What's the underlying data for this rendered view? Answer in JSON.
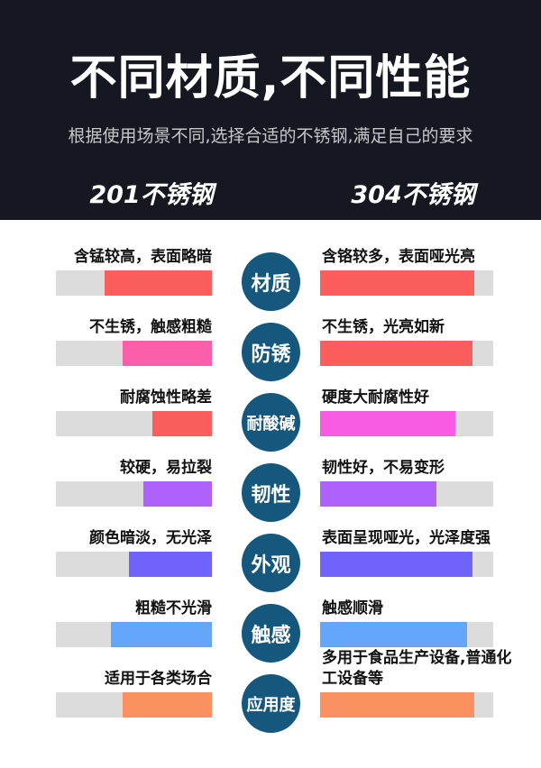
{
  "header": {
    "title": "不同材质,不同性能",
    "subtitle": "根据使用场景不同,选择合适的不锈钢,满足自己的要求",
    "left_column": "201不锈钢",
    "right_column": "304不锈钢"
  },
  "colors": {
    "header_bg": "#151821",
    "track": "#dcdcdc",
    "circle": "#16587d",
    "red": "#fc5e5e",
    "pink": "#fc5fa9",
    "magenta": "#f95ce3",
    "purple": "#ae62fb",
    "indigo": "#6f63fb",
    "blue": "#64a6fa",
    "orange": "#fb9160"
  },
  "chart_data": {
    "type": "bar",
    "title": "不同材质,不同性能",
    "legend": [
      "201不锈钢",
      "304不锈钢"
    ],
    "categories": [
      "材质",
      "防锈",
      "耐酸碱",
      "韧性",
      "外观",
      "触感",
      "应用度"
    ],
    "series": [
      {
        "name": "201不锈钢",
        "values": [
          69,
          57,
          38,
          44,
          53,
          65,
          57
        ]
      },
      {
        "name": "304不锈钢",
        "values": [
          89,
          88,
          78,
          67,
          88,
          85,
          89
        ]
      }
    ],
    "value_unit": "percent-of-track (estimated from bar fill)"
  },
  "rows": [
    {
      "category": "材质",
      "left": {
        "text": "含锰较高，表面略暗",
        "fill": 69,
        "color": "#fc5e5e"
      },
      "right": {
        "text": "含铬较多，表面哑光亮",
        "fill": 89,
        "color": "#fc5e5e"
      }
    },
    {
      "category": "防锈",
      "left": {
        "text": "不生锈，触感粗糙",
        "fill": 57,
        "color": "#fc5fa9"
      },
      "right": {
        "text": "不生锈，光亮如新",
        "fill": 88,
        "color": "#fc5e5e"
      }
    },
    {
      "category": "耐酸碱",
      "left": {
        "text": "耐腐蚀性略差",
        "fill": 38,
        "color": "#fc5e5e"
      },
      "right": {
        "text": "硬度大耐腐性好",
        "fill": 78,
        "color": "#f95ce3"
      }
    },
    {
      "category": "韧性",
      "left": {
        "text": "较硬，易拉裂",
        "fill": 44,
        "color": "#ae62fb"
      },
      "right": {
        "text": "韧性好，不易变形",
        "fill": 67,
        "color": "#ae62fb"
      }
    },
    {
      "category": "外观",
      "left": {
        "text": "颜色暗淡，无光泽",
        "fill": 53,
        "color": "#6f63fb"
      },
      "right": {
        "text": "表面呈现哑光，光泽度强",
        "fill": 88,
        "color": "#6f63fb"
      }
    },
    {
      "category": "触感",
      "left": {
        "text": "粗糙不光滑",
        "fill": 65,
        "color": "#64a6fa"
      },
      "right": {
        "text": "触感顺滑",
        "fill": 85,
        "color": "#64a6fa"
      }
    },
    {
      "category": "应用度",
      "left": {
        "text": "适用于各类场合",
        "fill": 57,
        "color": "#fb9160"
      },
      "right": {
        "text": "多用于食品生产设备,普通化工设备等",
        "fill": 89,
        "color": "#fb9160"
      }
    }
  ]
}
